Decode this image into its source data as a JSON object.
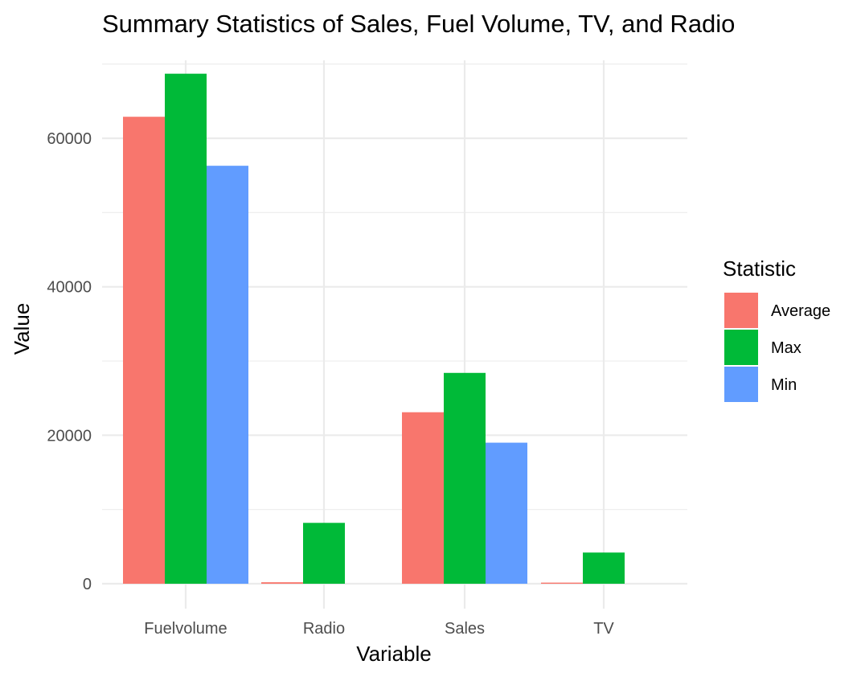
{
  "chart_data": {
    "type": "bar",
    "title": "Summary Statistics of Sales, Fuel Volume, TV, and Radio",
    "xlabel": "Variable",
    "ylabel": "Value",
    "categories": [
      "Fuelvolume",
      "Radio",
      "Sales",
      "TV"
    ],
    "series": [
      {
        "name": "Average",
        "color": "#F8766D",
        "values": [
          62900,
          200,
          23100,
          150
        ]
      },
      {
        "name": "Max",
        "color": "#00BA38",
        "values": [
          68700,
          8200,
          28400,
          4200
        ]
      },
      {
        "name": "Min",
        "color": "#619CFF",
        "values": [
          56300,
          0,
          19000,
          0
        ]
      }
    ],
    "yticks": [
      0,
      20000,
      40000,
      60000
    ],
    "ytick_labels": [
      "0",
      "20000",
      "40000",
      "60000"
    ],
    "ylim": [
      0,
      72000
    ],
    "grid": true,
    "legend": {
      "title": "Statistic",
      "position": "right"
    }
  }
}
